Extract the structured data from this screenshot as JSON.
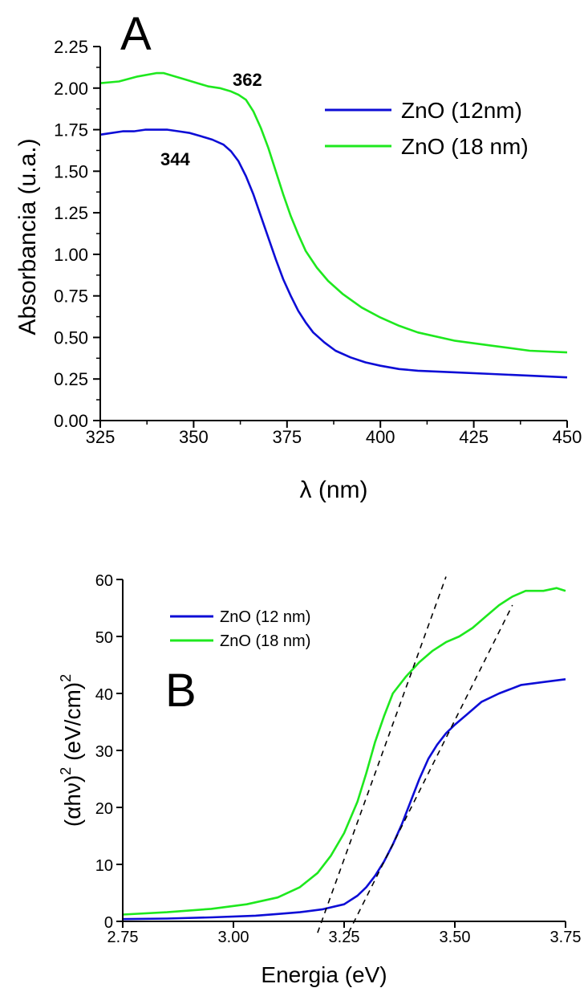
{
  "chart_data": [
    {
      "type": "line",
      "panel_label": "A",
      "xlabel": "λ (nm)",
      "ylabel": "Absorbancia (u.a.)",
      "xlim": [
        325,
        450
      ],
      "ylim": [
        0,
        2.25
      ],
      "xticks": [
        "325",
        "350",
        "375",
        "400",
        "425",
        "450"
      ],
      "yticks": [
        "0.00",
        "0.25",
        "0.50",
        "0.75",
        "1.00",
        "1.25",
        "1.50",
        "1.75",
        "2.00",
        "2.25"
      ],
      "legend_position": "top-right",
      "annotations": [
        {
          "text": "344",
          "x": 344,
          "y": 1.63
        },
        {
          "text": "362",
          "x": 362,
          "y": 2.05
        }
      ],
      "series": [
        {
          "name": "ZnO (12nm)",
          "color": "#0d0dd6",
          "points": [
            [
              325,
              1.72
            ],
            [
              328,
              1.73
            ],
            [
              331,
              1.74
            ],
            [
              334,
              1.74
            ],
            [
              337,
              1.75
            ],
            [
              340,
              1.75
            ],
            [
              343,
              1.75
            ],
            [
              346,
              1.74
            ],
            [
              349,
              1.73
            ],
            [
              352,
              1.71
            ],
            [
              355,
              1.69
            ],
            [
              358,
              1.66
            ],
            [
              360,
              1.62
            ],
            [
              362,
              1.56
            ],
            [
              364,
              1.47
            ],
            [
              366,
              1.36
            ],
            [
              368,
              1.23
            ],
            [
              370,
              1.1
            ],
            [
              372,
              0.97
            ],
            [
              374,
              0.85
            ],
            [
              376,
              0.75
            ],
            [
              378,
              0.66
            ],
            [
              380,
              0.59
            ],
            [
              382,
              0.53
            ],
            [
              385,
              0.47
            ],
            [
              388,
              0.42
            ],
            [
              392,
              0.38
            ],
            [
              396,
              0.35
            ],
            [
              400,
              0.33
            ],
            [
              405,
              0.31
            ],
            [
              410,
              0.3
            ],
            [
              420,
              0.29
            ],
            [
              430,
              0.28
            ],
            [
              440,
              0.27
            ],
            [
              450,
              0.26
            ]
          ]
        },
        {
          "name": "ZnO (18 nm)",
          "color": "#1ee81e",
          "points": [
            [
              325,
              2.03
            ],
            [
              330,
              2.04
            ],
            [
              335,
              2.07
            ],
            [
              340,
              2.09
            ],
            [
              342,
              2.09
            ],
            [
              345,
              2.07
            ],
            [
              348,
              2.05
            ],
            [
              351,
              2.03
            ],
            [
              354,
              2.01
            ],
            [
              357,
              2.0
            ],
            [
              360,
              1.98
            ],
            [
              362,
              1.96
            ],
            [
              364,
              1.93
            ],
            [
              366,
              1.86
            ],
            [
              368,
              1.76
            ],
            [
              370,
              1.64
            ],
            [
              372,
              1.5
            ],
            [
              374,
              1.36
            ],
            [
              376,
              1.23
            ],
            [
              378,
              1.12
            ],
            [
              380,
              1.02
            ],
            [
              383,
              0.92
            ],
            [
              386,
              0.84
            ],
            [
              390,
              0.76
            ],
            [
              395,
              0.68
            ],
            [
              400,
              0.62
            ],
            [
              405,
              0.57
            ],
            [
              410,
              0.53
            ],
            [
              420,
              0.48
            ],
            [
              430,
              0.45
            ],
            [
              440,
              0.42
            ],
            [
              450,
              0.41
            ]
          ]
        }
      ]
    },
    {
      "type": "line",
      "panel_label": "B",
      "xlabel": "Energia (eV)",
      "ylabel": "(αhν)² (eV/cm)²",
      "ylabel_parts": {
        "base": "(αhν)",
        "sup1": "2",
        "mid": " (eV/cm)",
        "sup2": "2"
      },
      "xlim": [
        2.75,
        3.75
      ],
      "ylim": [
        0,
        60
      ],
      "xticks": [
        "2.75",
        "3.00",
        "3.25",
        "3.50",
        "3.75"
      ],
      "yticks": [
        "0",
        "10",
        "20",
        "30",
        "40",
        "50",
        "60"
      ],
      "legend_position": "top-left",
      "series": [
        {
          "name": "ZnO (12 nm)",
          "color": "#0d0dd6",
          "points": [
            [
              2.75,
              0.4
            ],
            [
              2.85,
              0.5
            ],
            [
              2.95,
              0.7
            ],
            [
              3.05,
              1.0
            ],
            [
              3.1,
              1.3
            ],
            [
              3.15,
              1.6
            ],
            [
              3.2,
              2.1
            ],
            [
              3.25,
              3.0
            ],
            [
              3.28,
              4.5
            ],
            [
              3.3,
              6.0
            ],
            [
              3.32,
              8.0
            ],
            [
              3.34,
              10.5
            ],
            [
              3.36,
              13.5
            ],
            [
              3.38,
              17.0
            ],
            [
              3.4,
              21.0
            ],
            [
              3.42,
              25.0
            ],
            [
              3.44,
              28.5
            ],
            [
              3.46,
              31.0
            ],
            [
              3.48,
              33.0
            ],
            [
              3.5,
              34.5
            ],
            [
              3.53,
              36.5
            ],
            [
              3.56,
              38.5
            ],
            [
              3.6,
              40.0
            ],
            [
              3.65,
              41.5
            ],
            [
              3.7,
              42.0
            ],
            [
              3.75,
              42.5
            ]
          ]
        },
        {
          "name": "ZnO (18 nm)",
          "color": "#1ee81e",
          "points": [
            [
              2.75,
              1.2
            ],
            [
              2.85,
              1.6
            ],
            [
              2.95,
              2.2
            ],
            [
              3.03,
              3.0
            ],
            [
              3.1,
              4.2
            ],
            [
              3.15,
              6.0
            ],
            [
              3.19,
              8.5
            ],
            [
              3.22,
              11.5
            ],
            [
              3.25,
              15.5
            ],
            [
              3.28,
              21.0
            ],
            [
              3.3,
              26.0
            ],
            [
              3.32,
              31.5
            ],
            [
              3.34,
              36.0
            ],
            [
              3.36,
              40.0
            ],
            [
              3.39,
              43.0
            ],
            [
              3.42,
              45.5
            ],
            [
              3.45,
              47.5
            ],
            [
              3.48,
              49.0
            ],
            [
              3.51,
              50.0
            ],
            [
              3.54,
              51.5
            ],
            [
              3.57,
              53.5
            ],
            [
              3.6,
              55.5
            ],
            [
              3.63,
              57.0
            ],
            [
              3.66,
              58.0
            ],
            [
              3.7,
              58.0
            ],
            [
              3.73,
              58.5
            ],
            [
              3.75,
              58.0
            ]
          ]
        },
        {
          "name": "",
          "color": "#000000",
          "dashed": true,
          "points": [
            [
              3.19,
              -2.0
            ],
            [
              3.48,
              60.5
            ]
          ]
        },
        {
          "name": "",
          "color": "#000000",
          "dashed": true,
          "points": [
            [
              3.26,
              -2.0
            ],
            [
              3.63,
              55.5
            ]
          ]
        }
      ]
    }
  ]
}
